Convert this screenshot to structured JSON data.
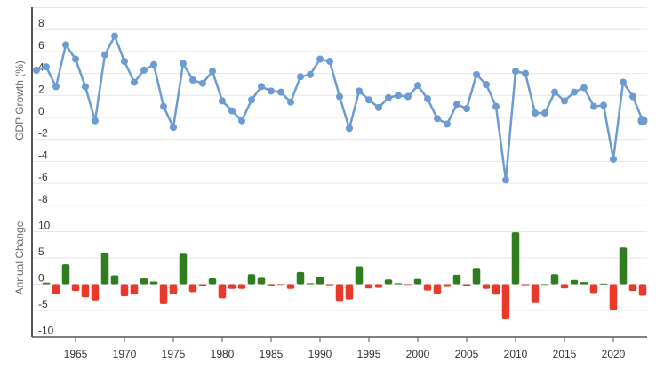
{
  "colors": {
    "line": "#6b9bd2",
    "positive_bar": "#2f7d1f",
    "negative_bar": "#e8392a",
    "grid": "#e6e6e6",
    "axis": "#555555",
    "tick_text": "#333333",
    "axis_title": "#666666"
  },
  "chart_data": [
    {
      "type": "line",
      "title": "",
      "xlabel": "",
      "ylabel": "GDP Growth (%)",
      "ylim": [
        -8,
        10
      ],
      "yticks": [
        8,
        6,
        4,
        2,
        0,
        -2,
        -4,
        -6,
        -8
      ],
      "grid": true,
      "legend": null,
      "x": [
        1961,
        1962,
        1963,
        1964,
        1965,
        1966,
        1967,
        1968,
        1969,
        1970,
        1971,
        1972,
        1973,
        1974,
        1975,
        1976,
        1977,
        1978,
        1979,
        1980,
        1981,
        1982,
        1983,
        1984,
        1985,
        1986,
        1987,
        1988,
        1989,
        1990,
        1991,
        1992,
        1993,
        1994,
        1995,
        1996,
        1997,
        1998,
        1999,
        2000,
        2001,
        2002,
        2003,
        2004,
        2005,
        2006,
        2007,
        2008,
        2009,
        2010,
        2011,
        2012,
        2013,
        2014,
        2015,
        2016,
        2017,
        2018,
        2019,
        2020,
        2021,
        2022,
        2023
      ],
      "series": [
        {
          "name": "GDP Growth (%)",
          "values": [
            4.3,
            4.6,
            2.8,
            6.6,
            5.3,
            2.8,
            -0.3,
            5.7,
            7.4,
            5.1,
            3.2,
            4.3,
            4.8,
            1.0,
            -0.9,
            4.9,
            3.4,
            3.1,
            4.2,
            1.5,
            0.6,
            -0.3,
            1.6,
            2.8,
            2.4,
            2.3,
            1.4,
            3.7,
            3.9,
            5.3,
            5.1,
            1.9,
            -1.0,
            2.4,
            1.6,
            0.9,
            1.8,
            2.0,
            1.9,
            2.9,
            1.7,
            -0.1,
            -0.6,
            1.2,
            0.8,
            3.9,
            3.0,
            1.0,
            -5.7,
            4.2,
            4.0,
            0.4,
            0.4,
            2.3,
            1.5,
            2.3,
            2.7,
            1.0,
            1.1,
            -3.8,
            3.2,
            1.9,
            -0.3
          ]
        }
      ]
    },
    {
      "type": "bar",
      "title": "",
      "xlabel": "",
      "ylabel": "Annual Change",
      "ylim": [
        -10,
        10
      ],
      "yticks": [
        10,
        5,
        0,
        -5,
        -10
      ],
      "grid": true,
      "legend": null,
      "x": [
        1962,
        1963,
        1964,
        1965,
        1966,
        1967,
        1968,
        1969,
        1970,
        1971,
        1972,
        1973,
        1974,
        1975,
        1976,
        1977,
        1978,
        1979,
        1980,
        1981,
        1982,
        1983,
        1984,
        1985,
        1986,
        1987,
        1988,
        1989,
        1990,
        1991,
        1992,
        1993,
        1994,
        1995,
        1996,
        1997,
        1998,
        1999,
        2000,
        2001,
        2002,
        2003,
        2004,
        2005,
        2006,
        2007,
        2008,
        2009,
        2010,
        2011,
        2012,
        2013,
        2014,
        2015,
        2016,
        2017,
        2018,
        2019,
        2020,
        2021,
        2022,
        2023
      ],
      "series": [
        {
          "name": "Annual Change",
          "values": [
            0.3,
            -1.8,
            3.8,
            -1.3,
            -2.5,
            -3.1,
            6.0,
            1.7,
            -2.3,
            -1.9,
            1.1,
            0.5,
            -3.8,
            -1.9,
            5.8,
            -1.5,
            -0.3,
            1.1,
            -2.7,
            -0.9,
            -0.9,
            1.9,
            1.2,
            -0.4,
            -0.1,
            -0.9,
            2.3,
            0.2,
            1.4,
            -0.2,
            -3.2,
            -2.9,
            3.4,
            -0.8,
            -0.7,
            0.9,
            0.2,
            -0.1,
            1.0,
            -1.2,
            -1.8,
            -0.5,
            1.8,
            -0.4,
            3.1,
            -0.9,
            -2.0,
            -6.7,
            9.9,
            -0.2,
            -3.6,
            0.0,
            1.9,
            -0.8,
            0.8,
            0.4,
            -1.7,
            0.1,
            -4.9,
            7.0,
            -1.3,
            -2.2
          ]
        }
      ]
    }
  ],
  "x_axis": {
    "ticks": [
      1965,
      1970,
      1975,
      1980,
      1985,
      1990,
      1995,
      2000,
      2005,
      2010,
      2015,
      2020
    ],
    "labels": [
      "1965",
      "1970",
      "1975",
      "1980",
      "1985",
      "1990",
      "1995",
      "2000",
      "2005",
      "2010",
      "2015",
      "2020"
    ]
  },
  "labels": {
    "top_ylabel": "GDP Growth (%)",
    "bottom_ylabel": "Annual Change"
  }
}
